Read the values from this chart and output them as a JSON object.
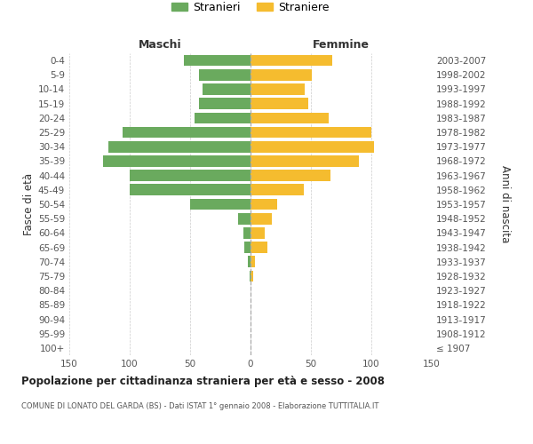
{
  "age_groups": [
    "100+",
    "95-99",
    "90-94",
    "85-89",
    "80-84",
    "75-79",
    "70-74",
    "65-69",
    "60-64",
    "55-59",
    "50-54",
    "45-49",
    "40-44",
    "35-39",
    "30-34",
    "25-29",
    "20-24",
    "15-19",
    "10-14",
    "5-9",
    "0-4"
  ],
  "birth_years": [
    "≤ 1907",
    "1908-1912",
    "1913-1917",
    "1918-1922",
    "1923-1927",
    "1928-1932",
    "1933-1937",
    "1938-1942",
    "1943-1947",
    "1948-1952",
    "1953-1957",
    "1958-1962",
    "1963-1967",
    "1968-1972",
    "1973-1977",
    "1978-1982",
    "1983-1987",
    "1988-1992",
    "1993-1997",
    "1998-2002",
    "2003-2007"
  ],
  "males": [
    0,
    0,
    0,
    0,
    0,
    1,
    2,
    5,
    6,
    10,
    50,
    100,
    100,
    122,
    118,
    106,
    46,
    43,
    40,
    43,
    55
  ],
  "females": [
    0,
    0,
    0,
    0,
    0,
    2,
    4,
    14,
    12,
    18,
    22,
    44,
    66,
    90,
    102,
    100,
    65,
    48,
    45,
    51,
    68
  ],
  "male_color": "#6aaa5e",
  "female_color": "#f5bc2f",
  "title": "Popolazione per cittadinanza straniera per età e sesso - 2008",
  "subtitle": "COMUNE DI LONATO DEL GARDA (BS) - Dati ISTAT 1° gennaio 2008 - Elaborazione TUTTITALIA.IT",
  "ylabel_left": "Fasce di età",
  "ylabel_right": "Anni di nascita",
  "xlabel_left": "Maschi",
  "xlabel_right": "Femmine",
  "legend_male": "Stranieri",
  "legend_female": "Straniere",
  "xlim": 150,
  "xtick_vals": [
    -150,
    -100,
    -50,
    0,
    50,
    100,
    150
  ],
  "xtick_labels": [
    "150",
    "100",
    "50",
    "0",
    "50",
    "100",
    "150"
  ]
}
